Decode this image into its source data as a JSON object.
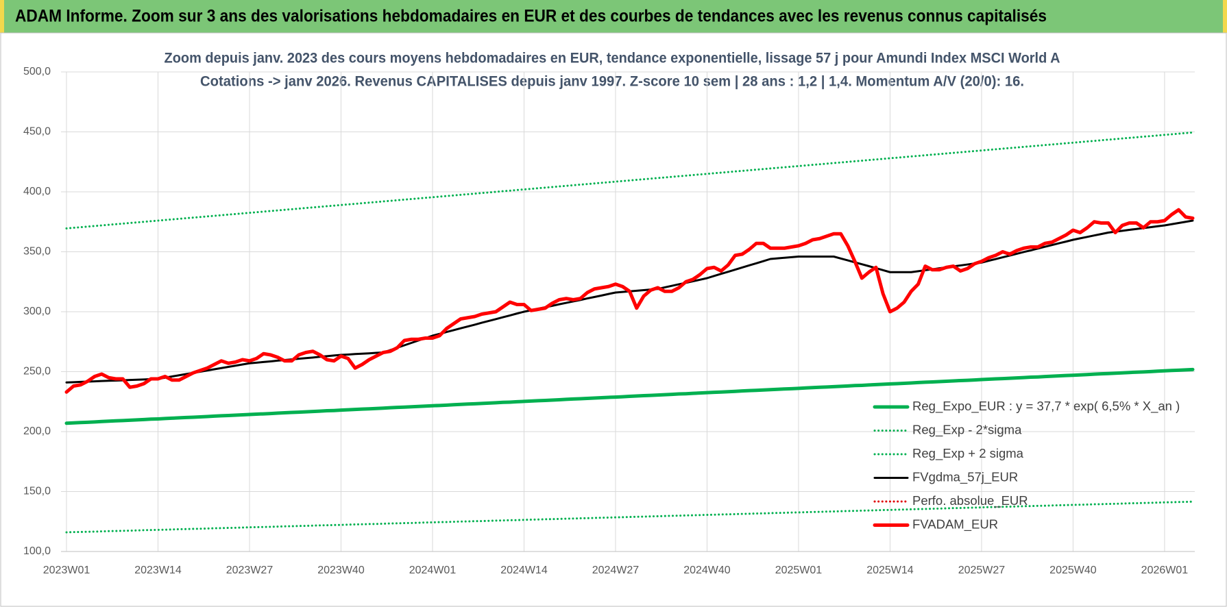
{
  "header": {
    "title": "ADAM Informe. Zoom sur 3 ans des valorisations hebdomadaires en EUR et des courbes de tendances avec les revenus connus capitalisés"
  },
  "chart_data": {
    "type": "line",
    "title_lines": [
      "Zoom depuis janv. 2023 des cours moyens hebdomadaires en EUR, tendance exponentielle, lissage 57 j pour Amundi Index MSCI World A",
      "Cotations -> janv 2026. Revenus CAPITALISES depuis janv 1997. Z-score 10 sem | 28 ans : 1,2 | 1,4. Momentum A/V (20/0): 16."
    ],
    "categories": [
      "2023W01",
      null,
      null,
      null,
      null,
      null,
      null,
      null,
      null,
      null,
      null,
      null,
      null,
      "2023W14",
      null,
      null,
      null,
      null,
      null,
      null,
      null,
      null,
      null,
      null,
      null,
      null,
      "2023W27",
      null,
      null,
      null,
      null,
      null,
      null,
      null,
      null,
      null,
      null,
      null,
      null,
      "2023W40",
      null,
      null,
      null,
      null,
      null,
      null,
      null,
      null,
      null,
      null,
      null,
      null,
      "2024W01",
      null,
      null,
      null,
      null,
      null,
      null,
      null,
      null,
      null,
      null,
      null,
      null,
      "2024W14",
      null,
      null,
      null,
      null,
      null,
      null,
      null,
      null,
      null,
      null,
      null,
      null,
      "2024W27",
      null,
      null,
      null,
      null,
      null,
      null,
      null,
      null,
      null,
      null,
      null,
      null,
      "2024W40",
      null,
      null,
      null,
      null,
      null,
      null,
      null,
      null,
      null,
      null,
      null,
      null,
      "2025W01",
      null,
      null,
      null,
      null,
      null,
      null,
      null,
      null,
      null,
      null,
      null,
      null,
      "2025W14",
      null,
      null,
      null,
      null,
      null,
      null,
      null,
      null,
      null,
      null,
      null,
      null,
      "2025W27",
      null,
      null,
      null,
      null,
      null,
      null,
      null,
      null,
      null,
      null,
      null,
      null,
      "2025W40",
      null,
      null,
      null,
      null,
      null,
      null,
      null,
      null,
      null,
      null,
      null,
      null,
      "2026W01",
      null,
      null,
      null,
      null
    ],
    "ylim": [
      100,
      500
    ],
    "yticks": [
      {
        "value": 100,
        "label": "100,0"
      },
      {
        "value": 150,
        "label": "150,0"
      },
      {
        "value": 200,
        "label": "200,0"
      },
      {
        "value": 250,
        "label": "250,0"
      },
      {
        "value": 300,
        "label": "300,0"
      },
      {
        "value": 350,
        "label": "350,0"
      },
      {
        "value": 400,
        "label": "400,0"
      },
      {
        "value": 450,
        "label": "450,0"
      },
      {
        "value": 500,
        "label": "500,0"
      }
    ],
    "grid": true,
    "legend": "bottom-right",
    "series": [
      {
        "name": "Reg_Expo_EUR : y = 37,7 * exp( 6,5% *  X_an )",
        "color": "#00b050",
        "line_style": "thick",
        "values": [
          207.0,
          207.3,
          207.6,
          207.8,
          208.1,
          208.4,
          208.7,
          209.0,
          209.2,
          209.5,
          209.8,
          210.1,
          210.4,
          210.6,
          210.9,
          211.2,
          211.5,
          211.8,
          212.0,
          212.3,
          212.6,
          212.9,
          213.2,
          213.4,
          213.7,
          214.0,
          214.3,
          214.6,
          214.8,
          215.1,
          215.4,
          215.7,
          216.0,
          216.2,
          216.5,
          216.8,
          217.1,
          217.4,
          217.6,
          217.9,
          218.2,
          218.5,
          218.8,
          219.0,
          219.3,
          219.6,
          219.9,
          220.2,
          220.4,
          220.7,
          221.0,
          221.3,
          221.6,
          221.8,
          222.1,
          222.4,
          222.7,
          223.0,
          223.2,
          223.5,
          223.8,
          224.1,
          224.4,
          224.6,
          224.9,
          225.2,
          225.5,
          225.8,
          226.0,
          226.3,
          226.6,
          226.9,
          227.2,
          227.4,
          227.7,
          228.0,
          228.3,
          228.6,
          228.8,
          229.1,
          229.4,
          229.7,
          230.0,
          230.2,
          230.5,
          230.8,
          231.1,
          231.4,
          231.6,
          231.9,
          232.2,
          232.5,
          232.8,
          233.0,
          233.3,
          233.6,
          233.9,
          234.2,
          234.4,
          234.7,
          235.0,
          235.3,
          235.6,
          235.8,
          236.1,
          236.4,
          236.7,
          237.0,
          237.2,
          237.5,
          237.8,
          238.1,
          238.4,
          238.6,
          238.9,
          239.2,
          239.5,
          239.8,
          240.0,
          240.3,
          240.6,
          240.9,
          241.2,
          241.4,
          241.7,
          242.0,
          242.3,
          242.6,
          242.8,
          243.1,
          243.4,
          243.7,
          244.0,
          244.2,
          244.5,
          244.8,
          245.1,
          245.4,
          245.6,
          245.9,
          246.2,
          246.5,
          246.8,
          247.0,
          247.3,
          247.6,
          247.9,
          248.2,
          248.4,
          248.7,
          249.0,
          249.3,
          249.6,
          249.8,
          250.1,
          250.4,
          250.7,
          251.0,
          251.2,
          251.5,
          251.8
        ]
      },
      {
        "name": "Reg_Exp - 2*sigma",
        "color": "#00b050",
        "line_style": "dotted",
        "values": [
          116.0,
          116.2,
          116.3,
          116.5,
          116.6,
          116.8,
          117.0,
          117.1,
          117.3,
          117.4,
          117.6,
          117.8,
          117.9,
          118.1,
          118.2,
          118.4,
          118.6,
          118.7,
          118.9,
          119.0,
          119.2,
          119.4,
          119.5,
          119.7,
          119.8,
          120.0,
          120.2,
          120.3,
          120.5,
          120.6,
          120.8,
          121.0,
          121.1,
          121.3,
          121.4,
          121.6,
          121.8,
          121.9,
          122.1,
          122.2,
          122.4,
          122.6,
          122.7,
          122.9,
          123.0,
          123.2,
          123.4,
          123.5,
          123.7,
          123.8,
          124.0,
          124.2,
          124.3,
          124.5,
          124.6,
          124.8,
          125.0,
          125.1,
          125.3,
          125.4,
          125.6,
          125.8,
          125.9,
          126.1,
          126.2,
          126.4,
          126.6,
          126.7,
          126.9,
          127.0,
          127.2,
          127.4,
          127.5,
          127.7,
          127.8,
          128.0,
          128.2,
          128.3,
          128.5,
          128.6,
          128.8,
          129.0,
          129.1,
          129.3,
          129.4,
          129.6,
          129.8,
          129.9,
          130.1,
          130.2,
          130.4,
          130.6,
          130.7,
          130.9,
          131.0,
          131.2,
          131.4,
          131.5,
          131.7,
          131.8,
          132.0,
          132.2,
          132.3,
          132.5,
          132.6,
          132.8,
          133.0,
          133.1,
          133.3,
          133.4,
          133.6,
          133.8,
          133.9,
          134.1,
          134.2,
          134.4,
          134.6,
          134.7,
          134.9,
          135.0,
          135.2,
          135.4,
          135.5,
          135.7,
          135.8,
          136.0,
          136.2,
          136.3,
          136.5,
          136.6,
          136.8,
          137.0,
          137.1,
          137.3,
          137.4,
          137.6,
          137.8,
          137.9,
          138.1,
          138.2,
          138.4,
          138.6,
          138.7,
          138.9,
          139.0,
          139.2,
          139.4,
          139.5,
          139.7,
          139.8,
          140.0,
          140.2,
          140.3,
          140.5,
          140.6,
          140.8,
          141.0,
          141.1,
          141.3,
          141.4,
          141.6
        ]
      },
      {
        "name": "Reg_Exp + 2 sigma",
        "color": "#00b050",
        "line_style": "dotted",
        "values": [
          369.5,
          370,
          370.5,
          371,
          371.5,
          372,
          372.5,
          373,
          373.5,
          374,
          374.5,
          375,
          375.5,
          376,
          376.5,
          377,
          377.5,
          378,
          378.5,
          379,
          379.5,
          380,
          380.5,
          381,
          381.5,
          382,
          382.5,
          383,
          383.5,
          384,
          384.5,
          385,
          385.5,
          386,
          386.5,
          387,
          387.5,
          388,
          388.5,
          389,
          389.5,
          390,
          390.5,
          391,
          391.5,
          392,
          392.5,
          393,
          393.5,
          394,
          394.5,
          395,
          395.5,
          396,
          396.5,
          397,
          397.5,
          398,
          398.5,
          399,
          399.5,
          400,
          400.5,
          401,
          401.5,
          402,
          402.5,
          403,
          403.5,
          404,
          404.5,
          405,
          405.5,
          406,
          406.5,
          407,
          407.5,
          408,
          408.5,
          409,
          409.5,
          410,
          410.5,
          411,
          411.5,
          412,
          412.5,
          413,
          413.5,
          414,
          414.5,
          415,
          415.5,
          416,
          416.5,
          417,
          417.5,
          418,
          418.5,
          419,
          419.5,
          420,
          420.5,
          421,
          421.5,
          422,
          422.5,
          423,
          423.5,
          424,
          424.5,
          425,
          425.5,
          426,
          426.5,
          427,
          427.5,
          428,
          428.5,
          429,
          429.5,
          430,
          430.5,
          431,
          431.5,
          432,
          432.5,
          433,
          433.5,
          434,
          434.5,
          435,
          435.5,
          436,
          436.5,
          437,
          437.5,
          438,
          438.5,
          439,
          439.5,
          440,
          440.5,
          441,
          441.5,
          442,
          442.5,
          443,
          443.5,
          444,
          444.5,
          445,
          445.5,
          446,
          446.5,
          447,
          447.5,
          448,
          448.5,
          449,
          449.5
        ]
      },
      {
        "name": "FVgdma_57j_EUR",
        "color": "#000000",
        "line_style": "solid",
        "values": [
          241,
          241.2,
          241.5,
          241.7,
          241.9,
          242.2,
          242.4,
          242.6,
          242.8,
          243.1,
          243.3,
          243.5,
          243.8,
          244,
          245,
          246,
          247,
          248,
          249,
          250,
          251,
          252,
          253,
          254,
          255,
          256,
          257,
          257.5,
          258.1,
          258.6,
          259.2,
          259.7,
          260.2,
          260.8,
          261.3,
          261.8,
          262.4,
          262.9,
          263.5,
          264,
          264.3,
          264.7,
          265,
          265.3,
          265.7,
          266,
          268,
          270,
          272,
          274,
          276,
          278,
          280,
          281.5,
          283.1,
          284.6,
          286.2,
          287.7,
          289.2,
          290.8,
          292.3,
          293.8,
          295.4,
          296.9,
          298.5,
          300,
          301.2,
          302.5,
          303.7,
          304.9,
          306.2,
          307.4,
          308.6,
          309.8,
          311.1,
          312.3,
          313.5,
          314.8,
          316,
          316.5,
          317,
          317.5,
          318,
          318.5,
          319,
          320.3,
          321.6,
          322.9,
          324.1,
          325.4,
          326.7,
          328,
          329.8,
          331.6,
          333.3,
          335.1,
          336.9,
          338.7,
          340.4,
          342.2,
          344,
          344.5,
          345,
          345.5,
          346,
          346,
          346,
          346,
          346,
          346,
          344.4,
          342.8,
          341.2,
          339.6,
          338,
          336.3,
          334.7,
          333,
          333,
          333,
          333,
          333.8,
          334.6,
          335.4,
          336.2,
          337,
          337.8,
          338.6,
          339.4,
          340.2,
          341,
          342.5,
          343.9,
          345.4,
          346.8,
          348.3,
          349.8,
          351.2,
          352.7,
          354.2,
          355.6,
          357.1,
          358.5,
          360,
          361.2,
          362.4,
          363.6,
          364.8,
          366,
          366.8,
          367.5,
          368.3,
          369,
          369.8,
          370.5,
          371.3,
          372,
          373,
          374,
          375,
          376
        ]
      },
      {
        "name": "Perfo. absolue_EUR",
        "color": "#e00000",
        "line_style": "dotted",
        "values": [
          null,
          null,
          null,
          null,
          null,
          null,
          null,
          null,
          null,
          null,
          null,
          null,
          null,
          null,
          null,
          null,
          null,
          null,
          null,
          null,
          null,
          null,
          null,
          null,
          null,
          null,
          null,
          null,
          null,
          null,
          null,
          null,
          null,
          null,
          null,
          null,
          null,
          null,
          null,
          null,
          null,
          null,
          null,
          null,
          null,
          null,
          null,
          null,
          null,
          null,
          null,
          null,
          null,
          null,
          null,
          null,
          null,
          null,
          null,
          null,
          null,
          null,
          null,
          null,
          null,
          null,
          null,
          null,
          null,
          null,
          null,
          null,
          null,
          null,
          null,
          null,
          null,
          null,
          null,
          null,
          null,
          null,
          null,
          null,
          null,
          null,
          null,
          null,
          null,
          null,
          null,
          null,
          null,
          null,
          null,
          null,
          null,
          null,
          null,
          null,
          null,
          null,
          null,
          null,
          null,
          null,
          null,
          null,
          null,
          null,
          null,
          null,
          null,
          null,
          null,
          null,
          null,
          null,
          null,
          null,
          null,
          null,
          null,
          null,
          null,
          null,
          null,
          null,
          null,
          null,
          null,
          null,
          null,
          null,
          null,
          null,
          null,
          null,
          null,
          null,
          null,
          null,
          null,
          null,
          null,
          null,
          null,
          null,
          null,
          null,
          null,
          null,
          null,
          null,
          null,
          null,
          null,
          null,
          null,
          null,
          null
        ]
      },
      {
        "name": "FVADAM_EUR",
        "color": "#ff0000",
        "line_style": "thick",
        "values": [
          233,
          238,
          239,
          242,
          246,
          248,
          245,
          244,
          244,
          237,
          238,
          240,
          244,
          244,
          246,
          243,
          243,
          246,
          249,
          251,
          253,
          256,
          259,
          257,
          258,
          260,
          259,
          261,
          265,
          264,
          262,
          259,
          259,
          264,
          266,
          267,
          264,
          260,
          259,
          263,
          261,
          253,
          256,
          260,
          263,
          266,
          267,
          270,
          276,
          277,
          277,
          278,
          278,
          280,
          286,
          290,
          294,
          295,
          296,
          298,
          299,
          300,
          304,
          308,
          306,
          306,
          301,
          302,
          303,
          307,
          310,
          311,
          310,
          311,
          316,
          319,
          320,
          321,
          323,
          321,
          317,
          303,
          313,
          318,
          320,
          317,
          317,
          320,
          325,
          327,
          331,
          336,
          337,
          334,
          339,
          347,
          348,
          352,
          357,
          357,
          353,
          353,
          353,
          354,
          355,
          357,
          360,
          361,
          363,
          365,
          365,
          355,
          342,
          328,
          333,
          337,
          315,
          300,
          303,
          308,
          317,
          323,
          338,
          335,
          335,
          337,
          338,
          334,
          336,
          340,
          342,
          345,
          347,
          350,
          348,
          351,
          353,
          354,
          354,
          357,
          358,
          361,
          364,
          368,
          366,
          370,
          375,
          374,
          374,
          366,
          372,
          374,
          374,
          370,
          375,
          375,
          376,
          381,
          385,
          379,
          378
        ]
      }
    ]
  }
}
